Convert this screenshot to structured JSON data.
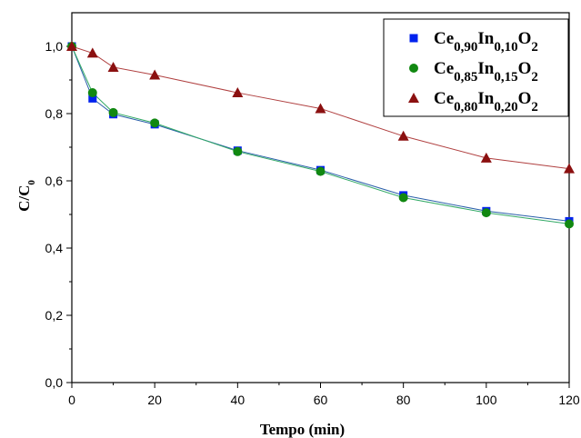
{
  "chart_data": {
    "type": "line",
    "xlabel": "Tempo (min)",
    "ylabel": {
      "main": "C/C",
      "sub": "0"
    },
    "xlim": [
      0,
      120
    ],
    "ylim": [
      0.0,
      1.1
    ],
    "x_ticks": [
      "0",
      "20",
      "40",
      "60",
      "80",
      "100",
      "120"
    ],
    "x_tick_values": [
      0,
      20,
      40,
      60,
      80,
      100,
      120
    ],
    "y_ticks": [
      "0,0",
      "0,2",
      "0,4",
      "0,6",
      "0,8",
      "1,0"
    ],
    "y_tick_values": [
      0.0,
      0.2,
      0.4,
      0.6,
      0.8,
      1.0
    ],
    "grid": false,
    "legend_position": "top-right",
    "series": [
      {
        "name": "Ce0,90In0,10O2",
        "name_parts": [
          {
            "t": "Ce",
            "sub": false
          },
          {
            "t": "0,90",
            "sub": true
          },
          {
            "t": "In",
            "sub": false
          },
          {
            "t": "0,10",
            "sub": true
          },
          {
            "t": "O",
            "sub": false
          },
          {
            "t": "2",
            "sub": true
          }
        ],
        "marker": "square",
        "color": "#0022ee",
        "line_color": "#2a5faa",
        "x": [
          0,
          5,
          10,
          20,
          40,
          60,
          80,
          100,
          120
        ],
        "y": [
          1.0,
          0.845,
          0.798,
          0.768,
          0.69,
          0.632,
          0.557,
          0.51,
          0.48
        ]
      },
      {
        "name": "Ce0,85In0,15O2",
        "name_parts": [
          {
            "t": "Ce",
            "sub": false
          },
          {
            "t": "0,85",
            "sub": true
          },
          {
            "t": "In",
            "sub": false
          },
          {
            "t": "0,15",
            "sub": true
          },
          {
            "t": "O",
            "sub": false
          },
          {
            "t": "2",
            "sub": true
          }
        ],
        "marker": "circle",
        "color": "#118811",
        "line_color": "#33aa66",
        "x": [
          0,
          5,
          10,
          20,
          40,
          60,
          80,
          100,
          120
        ],
        "y": [
          1.0,
          0.862,
          0.803,
          0.772,
          0.687,
          0.628,
          0.55,
          0.505,
          0.472
        ]
      },
      {
        "name": "Ce0,80In0,20O2",
        "name_parts": [
          {
            "t": "Ce",
            "sub": false
          },
          {
            "t": "0,80",
            "sub": true
          },
          {
            "t": "In",
            "sub": false
          },
          {
            "t": "0,20",
            "sub": true
          },
          {
            "t": "O",
            "sub": false
          },
          {
            "t": "2",
            "sub": true
          }
        ],
        "marker": "triangle",
        "color": "#8b1010",
        "line_color": "#b04040",
        "x": [
          0,
          5,
          10,
          20,
          40,
          60,
          80,
          100,
          120
        ],
        "y": [
          1.0,
          0.98,
          0.938,
          0.915,
          0.862,
          0.815,
          0.733,
          0.668,
          0.636
        ]
      }
    ]
  }
}
